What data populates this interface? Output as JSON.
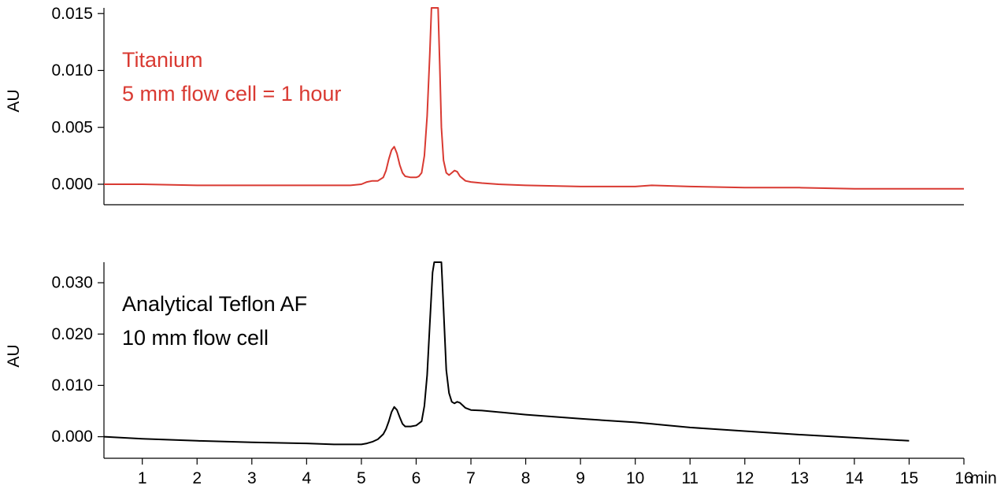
{
  "chart_data": [
    {
      "type": "line",
      "ylabel": "AU",
      "ylim": [
        -0.0018,
        0.0155
      ],
      "yticks": [
        "0.000",
        "0.005",
        "0.010",
        "0.015"
      ],
      "xlim": [
        0.3,
        16
      ],
      "annotation": [
        "Titanium",
        "5 mm flow cell = 1 hour"
      ],
      "color": "#d93a32",
      "series": [
        {
          "x": [
            0.3,
            1,
            2,
            3,
            4,
            4.8,
            5.0,
            5.1,
            5.2,
            5.3,
            5.4,
            5.45,
            5.5,
            5.55,
            5.6,
            5.65,
            5.7,
            5.75,
            5.8,
            5.9,
            6.0,
            6.05,
            6.1,
            6.15,
            6.2,
            6.25,
            6.28,
            6.3,
            6.33,
            6.36,
            6.4,
            6.43,
            6.46,
            6.5,
            6.55,
            6.6,
            6.65,
            6.7,
            6.75,
            6.8,
            6.85,
            6.9,
            7.0,
            7.2,
            7.5,
            8,
            9,
            10,
            10.3,
            11,
            12,
            13,
            14,
            15,
            16
          ],
          "y": [
            0.0,
            0.0,
            -0.0001,
            -0.0001,
            -0.0001,
            -0.0001,
            0.0,
            0.0002,
            0.0003,
            0.0003,
            0.0006,
            0.0012,
            0.0022,
            0.003,
            0.0033,
            0.0027,
            0.0017,
            0.001,
            0.0007,
            0.0006,
            0.0006,
            0.0007,
            0.001,
            0.0025,
            0.006,
            0.0115,
            0.0155,
            0.0155,
            0.0155,
            0.0155,
            0.0155,
            0.0105,
            0.005,
            0.0021,
            0.001,
            0.0008,
            0.001,
            0.0012,
            0.0011,
            0.0007,
            0.0005,
            0.0003,
            0.0002,
            0.0001,
            0.0,
            -0.0001,
            -0.0002,
            -0.0002,
            -0.0001,
            -0.0002,
            -0.0003,
            -0.0003,
            -0.0004,
            -0.0004,
            -0.0004
          ]
        }
      ]
    },
    {
      "type": "line",
      "ylabel": "AU",
      "xlabel": "min",
      "ylim": [
        -0.0042,
        0.034
      ],
      "yticks": [
        "0.000",
        "0.010",
        "0.020",
        "0.030"
      ],
      "xlim": [
        0.3,
        16
      ],
      "xticks": [
        "1",
        "2",
        "3",
        "4",
        "5",
        "6",
        "7",
        "8",
        "9",
        "10",
        "11",
        "12",
        "13",
        "14",
        "15",
        "16"
      ],
      "annotation": [
        "Analytical Teflon AF",
        "10 mm flow cell"
      ],
      "color": "#000000",
      "series": [
        {
          "x": [
            0.3,
            1,
            2,
            3,
            4,
            4.5,
            5.0,
            5.1,
            5.2,
            5.3,
            5.4,
            5.45,
            5.5,
            5.55,
            5.6,
            5.65,
            5.7,
            5.75,
            5.8,
            5.9,
            6.0,
            6.1,
            6.15,
            6.2,
            6.25,
            6.3,
            6.33,
            6.36,
            6.4,
            6.43,
            6.46,
            6.5,
            6.55,
            6.6,
            6.65,
            6.7,
            6.75,
            6.8,
            6.9,
            7.0,
            7.2,
            8,
            9,
            10,
            10.3,
            10.5,
            11,
            12,
            13,
            14,
            15
          ],
          "y": [
            0.0,
            -0.0004,
            -0.0008,
            -0.0011,
            -0.0013,
            -0.0015,
            -0.0015,
            -0.0013,
            -0.001,
            -0.0005,
            0.0005,
            0.0015,
            0.003,
            0.0048,
            0.0058,
            0.0052,
            0.0038,
            0.0025,
            0.002,
            0.002,
            0.0022,
            0.003,
            0.006,
            0.012,
            0.022,
            0.032,
            0.034,
            0.034,
            0.034,
            0.034,
            0.034,
            0.025,
            0.013,
            0.0085,
            0.0068,
            0.0065,
            0.0068,
            0.0066,
            0.0056,
            0.0052,
            0.0051,
            0.0043,
            0.0035,
            0.0028,
            0.0025,
            0.0023,
            0.0018,
            0.0011,
            0.0004,
            -0.0002,
            -0.0008
          ]
        }
      ]
    }
  ]
}
